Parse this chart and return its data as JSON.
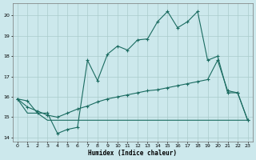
{
  "xlabel": "Humidex (Indice chaleur)",
  "bg_color": "#cce8ec",
  "grid_color": "#aacccc",
  "line_color": "#1a6b60",
  "xlim": [
    -0.5,
    23.5
  ],
  "ylim": [
    13.8,
    20.6
  ],
  "yticks": [
    14,
    15,
    16,
    17,
    18,
    19,
    20
  ],
  "xticks": [
    0,
    1,
    2,
    3,
    4,
    5,
    6,
    7,
    8,
    9,
    10,
    11,
    12,
    13,
    14,
    15,
    16,
    17,
    18,
    19,
    20,
    21,
    22,
    23
  ],
  "line1_x": [
    0,
    1,
    2,
    3,
    4,
    5,
    6,
    7,
    8,
    9,
    10,
    11,
    12,
    13,
    14,
    15,
    16,
    17,
    18,
    19,
    20,
    21,
    22,
    23
  ],
  "line1_y": [
    15.9,
    15.8,
    15.2,
    15.2,
    14.2,
    14.4,
    14.5,
    17.8,
    16.8,
    18.1,
    18.5,
    18.3,
    18.8,
    18.85,
    19.7,
    20.2,
    19.4,
    19.7,
    20.2,
    17.8,
    18.0,
    16.2,
    16.2,
    14.85
  ],
  "line2_x": [
    0,
    1,
    2,
    3,
    4,
    5,
    6,
    7,
    8,
    9,
    10,
    11,
    12,
    13,
    14,
    15,
    16,
    17,
    18,
    19,
    20,
    21,
    22,
    23
  ],
  "line2_y": [
    15.9,
    15.5,
    15.3,
    15.1,
    15.0,
    15.2,
    15.4,
    15.55,
    15.75,
    15.9,
    16.0,
    16.1,
    16.2,
    16.3,
    16.35,
    16.45,
    16.55,
    16.65,
    16.75,
    16.85,
    17.8,
    16.3,
    16.2,
    14.85
  ],
  "line3_x": [
    0,
    1,
    2,
    3,
    4,
    5,
    6,
    7,
    8,
    9,
    10,
    11,
    12,
    13,
    14,
    15,
    16,
    17,
    18,
    19,
    20,
    21,
    22,
    23
  ],
  "line3_y": [
    15.9,
    15.2,
    15.2,
    14.85,
    14.85,
    14.85,
    14.85,
    14.85,
    14.85,
    14.85,
    14.85,
    14.85,
    14.85,
    14.85,
    14.85,
    14.85,
    14.85,
    14.85,
    14.85,
    14.85,
    14.85,
    14.85,
    14.85,
    14.85
  ]
}
